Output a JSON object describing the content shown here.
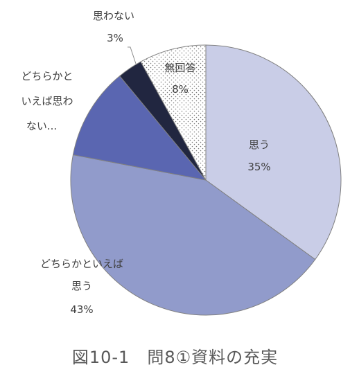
{
  "chart_data": {
    "type": "pie",
    "slices": [
      {
        "label": "思う",
        "value": 35,
        "value_label": "35%",
        "color": "#C9CDE7",
        "pattern": "none"
      },
      {
        "label": "どちらかといえば思う",
        "value": 43,
        "value_label": "43%",
        "color": "#919BCB",
        "pattern": "none"
      },
      {
        "label": "どちらかといえば思わない...",
        "value": 11,
        "value_label": "",
        "color": "#5A66B1",
        "pattern": "none"
      },
      {
        "label": "思わない",
        "value": 3,
        "value_label": "3%",
        "color": "#212640",
        "pattern": "none"
      },
      {
        "label": "無回答",
        "value": 8,
        "value_label": "8%",
        "color": "#ffffff",
        "pattern": "dots"
      }
    ],
    "start": "12 o'clock",
    "direction": "clockwise",
    "legend": "none"
  },
  "labels": {
    "omou_1": "思う",
    "omou_pct": "35%",
    "dochira_omou_1": "どちらかといえば",
    "dochira_omou_2": "思う",
    "dochira_omou_pct": "43%",
    "dochira_omowanai_1": "どちらかと",
    "dochira_omowanai_2": "いえば思わ",
    "dochira_omowanai_3": "ない...",
    "omowanai_1": "思わない",
    "omowanai_pct": "3%",
    "mukaitou_1": "無回答",
    "mukaitou_pct": "8%"
  },
  "caption": "図10-1　問8①資料の充実"
}
